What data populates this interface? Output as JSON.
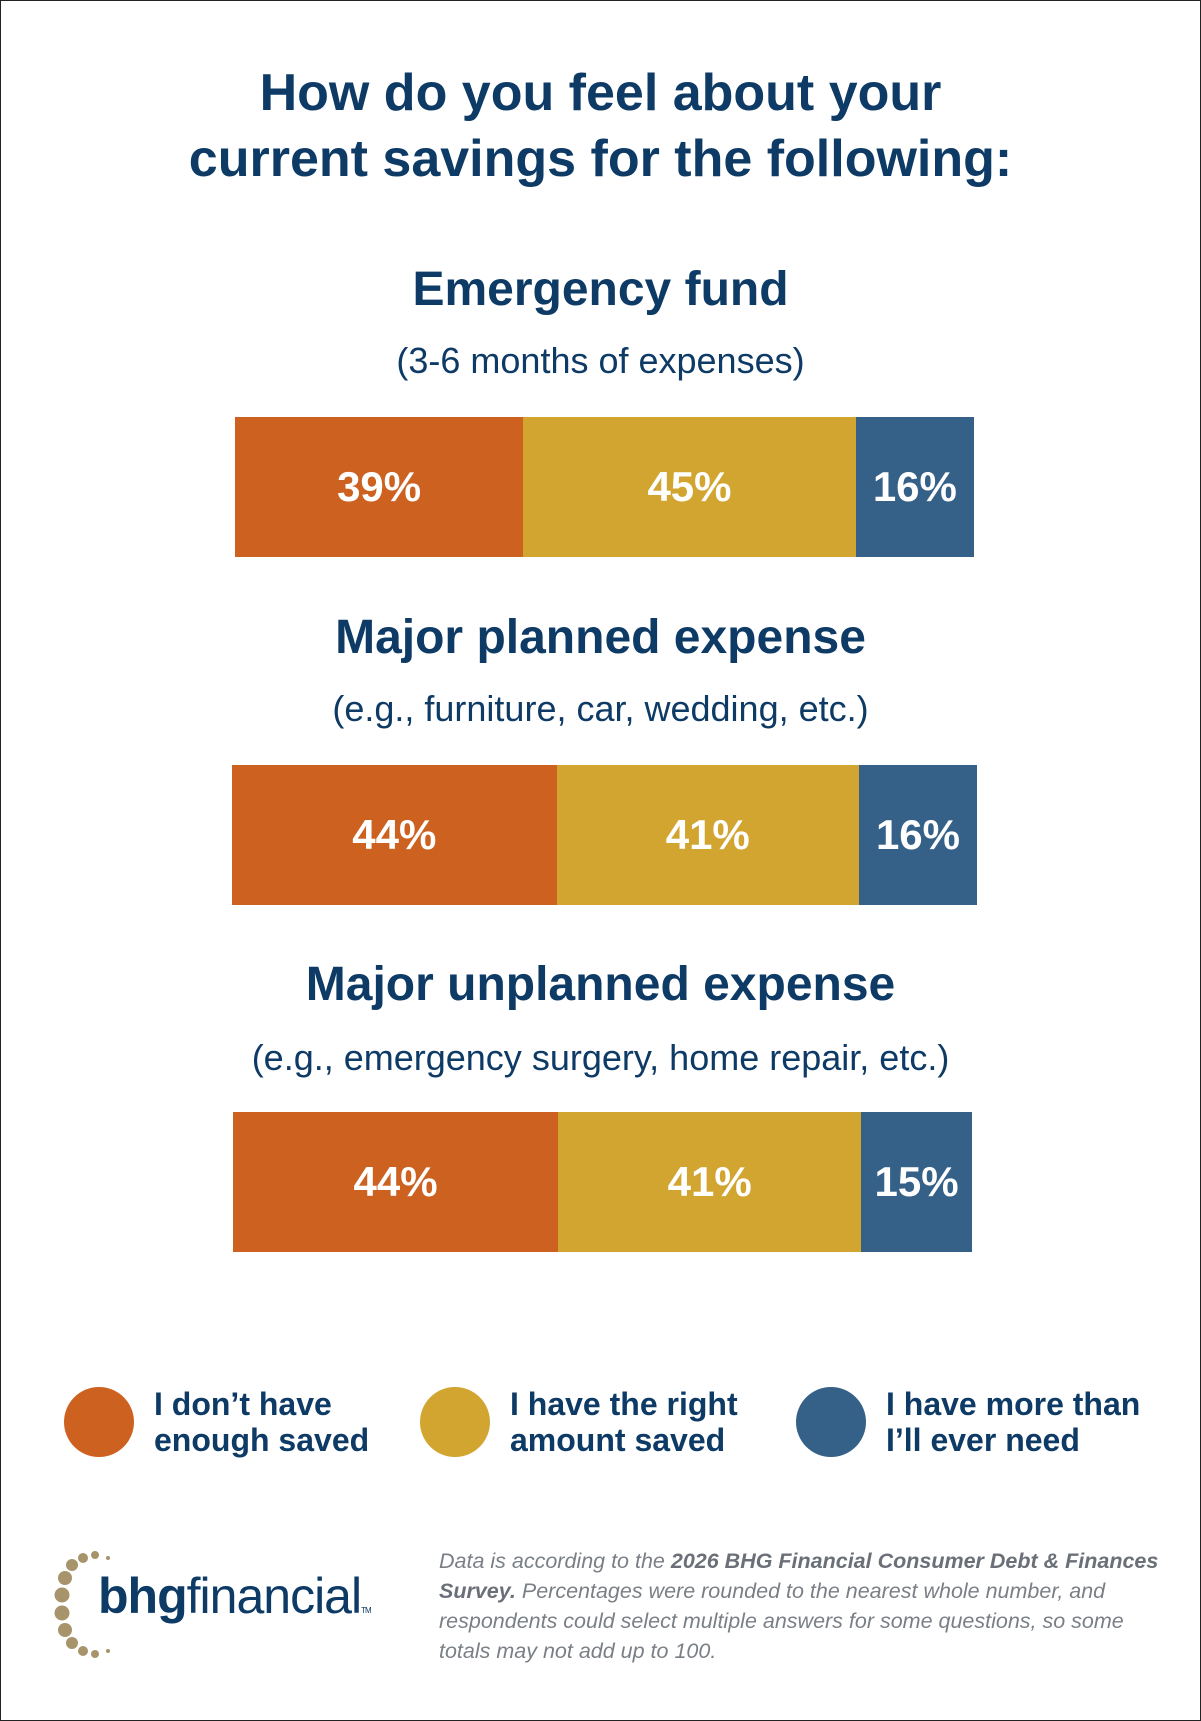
{
  "chart_data": {
    "type": "bar",
    "orientation": "horizontal-stacked",
    "title": "How do you feel about your current savings for the following:",
    "categories": [
      {
        "title": "Emergency fund",
        "subtitle": "(3-6 months of expenses)"
      },
      {
        "title": "Major planned expense",
        "subtitle": "(e.g., furniture, car, wedding, etc.)"
      },
      {
        "title": "Major unplanned expense",
        "subtitle": "(e.g., emergency surgery, home repair, etc.)"
      }
    ],
    "series": [
      {
        "name": "I don’t have enough saved",
        "color": "#cd6120",
        "values": [
          39,
          44,
          44
        ],
        "labels": [
          "39%",
          "44%",
          "44%"
        ]
      },
      {
        "name": "I have the right amount saved",
        "color": "#d2a531",
        "values": [
          45,
          41,
          41
        ],
        "labels": [
          "45%",
          "41%",
          "41%"
        ]
      },
      {
        "name": "I have more than I’ll ever need",
        "color": "#356087",
        "values": [
          16,
          16,
          15
        ],
        "labels": [
          "16%",
          "16%",
          "15%"
        ]
      }
    ],
    "legend": {
      "placement": "bottom",
      "items": [
        {
          "line1": "I don’t have",
          "line2": "enough saved"
        },
        {
          "line1": "I have the right",
          "line2": "amount saved"
        },
        {
          "line1": "I have more than",
          "line2": "I’ll ever need"
        }
      ]
    }
  },
  "title_lines": [
    "How do you feel about your",
    "current savings for the following:"
  ],
  "logo": {
    "bold": "bhg",
    "rest": "financial",
    "tm": "TM"
  },
  "footnote": {
    "pre": "Data is according to the ",
    "bold": "2026 BHG Financial Consumer Debt & Finances Survey.",
    "post": " Percentages were rounded to the nearest whole number, and respondents could select multiple answers for some questions, so some totals may not add up to 100."
  }
}
